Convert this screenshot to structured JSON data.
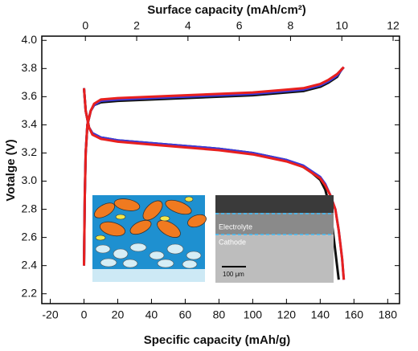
{
  "chart_data": {
    "type": "line",
    "xlabel": "Specific capacity (mAh/g)",
    "ylabel": "Votalge (V)",
    "x2label": "Surface capacity (mAh/cm²)",
    "xlim": [
      -25,
      187
    ],
    "xticks": [
      -20,
      0,
      20,
      40,
      60,
      80,
      100,
      120,
      140,
      160,
      180
    ],
    "x2lim": [
      -1.7,
      12.25
    ],
    "x2ticks": [
      0,
      2,
      4,
      6,
      8,
      10,
      12
    ],
    "ylim": [
      2.13,
      4.03
    ],
    "yticks": [
      2.2,
      2.4,
      2.6,
      2.8,
      {
        "value": 3,
        "label": "3.0"
      },
      3.2,
      3.4,
      3.6,
      3.8,
      {
        "value": 4,
        "label": "4.0"
      }
    ],
    "annotations": [
      "Electrolyte",
      "Cathode",
      "100 μm"
    ],
    "series": [
      {
        "color": "#111111",
        "x": [
          0,
          0.5,
          1,
          2,
          4,
          6,
          10,
          20,
          40,
          60,
          80,
          100,
          120,
          130,
          140,
          145,
          150,
          153
        ],
        "values": [
          2.4,
          2.9,
          3.2,
          3.4,
          3.5,
          3.54,
          3.56,
          3.57,
          3.58,
          3.59,
          3.6,
          3.61,
          3.63,
          3.64,
          3.67,
          3.7,
          3.74,
          3.8
        ]
      },
      {
        "color": "#111111",
        "x": [
          0,
          1,
          3,
          5,
          10,
          20,
          40,
          60,
          80,
          100,
          120,
          130,
          135,
          140,
          143,
          146,
          148,
          150,
          151
        ],
        "values": [
          3.66,
          3.5,
          3.38,
          3.34,
          3.31,
          3.29,
          3.27,
          3.25,
          3.23,
          3.2,
          3.15,
          3.1,
          3.06,
          3.01,
          2.94,
          2.8,
          2.6,
          2.4,
          2.3
        ]
      },
      {
        "color": "#3a3adc",
        "x": [
          0,
          0.5,
          1,
          2,
          4,
          6,
          10,
          20,
          40,
          60,
          80,
          100,
          120,
          130,
          140,
          145,
          150,
          154
        ],
        "values": [
          2.4,
          2.9,
          3.2,
          3.4,
          3.5,
          3.54,
          3.57,
          3.58,
          3.59,
          3.6,
          3.61,
          3.62,
          3.64,
          3.65,
          3.68,
          3.71,
          3.75,
          3.81
        ]
      },
      {
        "color": "#3a3adc",
        "x": [
          0,
          1,
          3,
          5,
          10,
          20,
          40,
          60,
          80,
          100,
          120,
          130,
          135,
          140,
          143,
          146,
          149,
          151,
          153,
          154
        ],
        "values": [
          3.66,
          3.5,
          3.38,
          3.34,
          3.31,
          3.29,
          3.27,
          3.25,
          3.23,
          3.2,
          3.15,
          3.11,
          3.07,
          3.03,
          2.98,
          2.9,
          2.8,
          2.65,
          2.45,
          2.3
        ]
      },
      {
        "color": "#e8201e",
        "x": [
          0,
          0.5,
          1,
          2,
          4,
          6,
          10,
          20,
          40,
          60,
          80,
          100,
          120,
          130,
          140,
          145,
          150,
          154
        ],
        "values": [
          2.4,
          2.9,
          3.2,
          3.4,
          3.5,
          3.55,
          3.58,
          3.59,
          3.6,
          3.61,
          3.62,
          3.63,
          3.65,
          3.66,
          3.69,
          3.72,
          3.76,
          3.81
        ]
      },
      {
        "color": "#e8201e",
        "x": [
          0,
          1,
          3,
          5,
          10,
          20,
          40,
          60,
          80,
          100,
          120,
          130,
          135,
          140,
          143,
          146,
          149,
          151,
          153,
          154
        ],
        "values": [
          3.66,
          3.5,
          3.38,
          3.33,
          3.3,
          3.28,
          3.26,
          3.24,
          3.22,
          3.19,
          3.14,
          3.1,
          3.06,
          3.02,
          2.97,
          2.9,
          2.8,
          2.65,
          2.45,
          2.3
        ]
      }
    ]
  }
}
